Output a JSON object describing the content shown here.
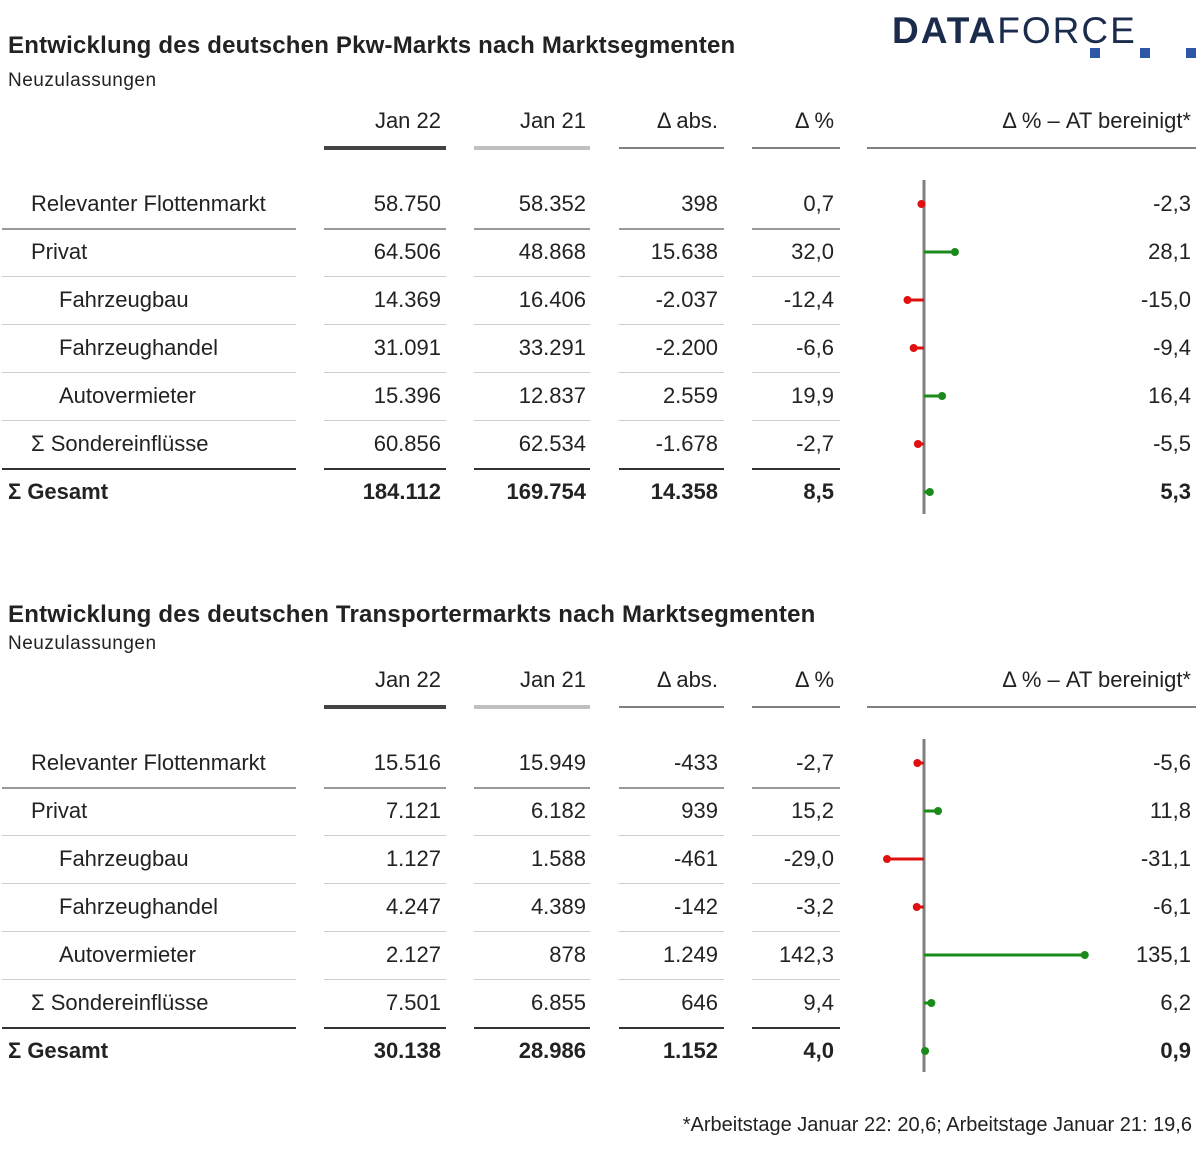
{
  "logo": {
    "bold": "DATA",
    "light": "FORCE"
  },
  "columns": [
    "Jan 22",
    "Jan 21",
    "Δ abs.",
    "Δ %",
    "Δ % – AT bereinigt*"
  ],
  "colors": {
    "jan22": "#444444",
    "jan21": "#c0c0c0",
    "rule": "#999999",
    "axis": "#808080",
    "positive": "#1a8a1a",
    "negative": "#e01010"
  },
  "footnote": "*Arbeitstage Januar 22: 20,6; Arbeitstage Januar 21: 19,6",
  "chart_data": [
    {
      "type": "table",
      "title": "Entwicklung des deutschen Pkw-Markts nach Marktsegmenten",
      "subtitle": "Neuzulassungen",
      "rows": [
        {
          "label": "Relevanter Flottenmarkt",
          "indent": 1,
          "bold": false,
          "jan22": "58.750",
          "jan21": "58.352",
          "abs": "398",
          "pct": "0,7",
          "at": "-2,3",
          "at_value": -2.3
        },
        {
          "label": "Privat",
          "indent": 1,
          "bold": false,
          "jan22": "64.506",
          "jan21": "48.868",
          "abs": "15.638",
          "pct": "32,0",
          "at": "28,1",
          "at_value": 28.1
        },
        {
          "label": "Fahrzeugbau",
          "indent": 2,
          "bold": false,
          "jan22": "14.369",
          "jan21": "16.406",
          "abs": "-2.037",
          "pct": "-12,4",
          "at": "-15,0",
          "at_value": -15.0
        },
        {
          "label": "Fahrzeughandel",
          "indent": 2,
          "bold": false,
          "jan22": "31.091",
          "jan21": "33.291",
          "abs": "-2.200",
          "pct": "-6,6",
          "at": "-9,4",
          "at_value": -9.4
        },
        {
          "label": "Autovermieter",
          "indent": 2,
          "bold": false,
          "jan22": "15.396",
          "jan21": "12.837",
          "abs": "2.559",
          "pct": "19,9",
          "at": "16,4",
          "at_value": 16.4
        },
        {
          "label": "Σ Sondereinflüsse",
          "indent": 1,
          "bold": false,
          "jan22": "60.856",
          "jan21": "62.534",
          "abs": "-1.678",
          "pct": "-2,7",
          "at": "-5,5",
          "at_value": -5.5
        },
        {
          "label": "Σ Gesamt",
          "indent": 0,
          "bold": true,
          "jan22": "184.112",
          "jan21": "169.754",
          "abs": "14.358",
          "pct": "8,5",
          "at": "5,3",
          "at_value": 5.3
        }
      ]
    },
    {
      "type": "table",
      "title": "Entwicklung des deutschen Transportermarkts nach Marktsegmenten",
      "subtitle": "Neuzulassungen",
      "rows": [
        {
          "label": "Relevanter Flottenmarkt",
          "indent": 1,
          "bold": false,
          "jan22": "15.516",
          "jan21": "15.949",
          "abs": "-433",
          "pct": "-2,7",
          "at": "-5,6",
          "at_value": -5.6
        },
        {
          "label": "Privat",
          "indent": 1,
          "bold": false,
          "jan22": "7.121",
          "jan21": "6.182",
          "abs": "939",
          "pct": "15,2",
          "at": "11,8",
          "at_value": 11.8
        },
        {
          "label": "Fahrzeugbau",
          "indent": 2,
          "bold": false,
          "jan22": "1.127",
          "jan21": "1.588",
          "abs": "-461",
          "pct": "-29,0",
          "at": "-31,1",
          "at_value": -31.1
        },
        {
          "label": "Fahrzeughandel",
          "indent": 2,
          "bold": false,
          "jan22": "4.247",
          "jan21": "4.389",
          "abs": "-142",
          "pct": "-3,2",
          "at": "-6,1",
          "at_value": -6.1
        },
        {
          "label": "Autovermieter",
          "indent": 2,
          "bold": false,
          "jan22": "2.127",
          "jan21": "878",
          "abs": "1.249",
          "pct": "142,3",
          "at": "135,1",
          "at_value": 135.1
        },
        {
          "label": "Σ Sondereinflüsse",
          "indent": 1,
          "bold": false,
          "jan22": "7.501",
          "jan21": "6.855",
          "abs": "646",
          "pct": "9,4",
          "at": "6,2",
          "at_value": 6.2
        },
        {
          "label": "Σ Gesamt",
          "indent": 0,
          "bold": true,
          "jan22": "30.138",
          "jan21": "28.986",
          "abs": "1.152",
          "pct": "4,0",
          "at": "0,9",
          "at_value": 0.9
        }
      ]
    }
  ]
}
